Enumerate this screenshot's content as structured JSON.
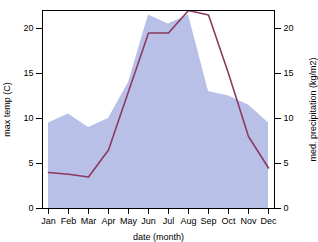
{
  "chart_data": {
    "type": "line",
    "xlabel": "date (month)",
    "ylabel": "max temp (C)",
    "y2label": "med. precipitation (kg/m2)",
    "categories": [
      "Jan",
      "Feb",
      "Mar",
      "Apr",
      "May",
      "Jun",
      "Jul",
      "Aug",
      "Sep",
      "Oct",
      "Nov",
      "Dec"
    ],
    "series": [
      {
        "type": "area",
        "axis": "y2",
        "color": "#b8c0e8",
        "values": [
          9.5,
          10.5,
          9.0,
          10.0,
          14.0,
          21.5,
          20.5,
          21.5,
          13.0,
          12.5,
          11.5,
          9.5
        ]
      },
      {
        "type": "line",
        "color": "#8B3A62",
        "values": [
          4.0,
          3.8,
          3.5,
          6.5,
          13.0,
          19.5,
          19.5,
          22.0,
          21.5,
          15.0,
          8.0,
          4.5
        ]
      }
    ],
    "ylim": [
      0,
      22
    ],
    "yticks": [
      0,
      5,
      10,
      15,
      20
    ],
    "y2lim": [
      0,
      22
    ],
    "y2ticks": [
      0,
      5,
      10,
      15,
      20
    ],
    "grid": false
  }
}
